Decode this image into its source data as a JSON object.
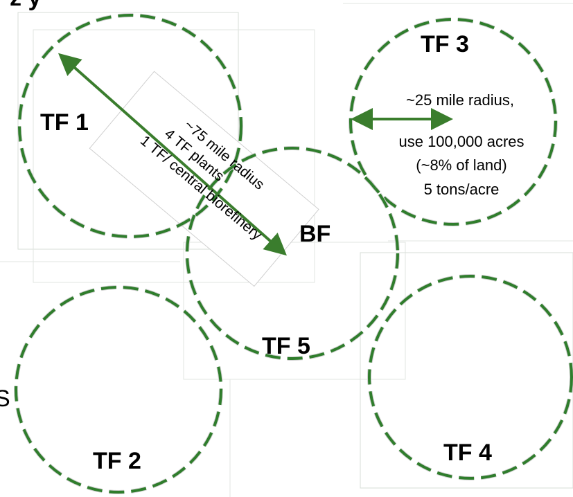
{
  "circles": [
    {
      "id": "tf1",
      "label": "TF 1"
    },
    {
      "id": "tf2",
      "label": "TF 2"
    },
    {
      "id": "tf3",
      "label": "TF 3"
    },
    {
      "id": "tf4",
      "label": "TF 4"
    },
    {
      "id": "tf5",
      "label": "TF 5"
    }
  ],
  "labels": {
    "bf": "BF",
    "top_cut": "z y",
    "left_cut": "S"
  },
  "notes": {
    "large": {
      "line1": "~75 mile radius",
      "line2": "4 TF plants",
      "line3": "1 TF/ central biorefinery"
    },
    "small": {
      "line1": "~25 mile radius,",
      "line2": "use 100,000 acres",
      "line3": "(~8% of land)",
      "line4": "5 tons/acre"
    }
  },
  "colors": {
    "circle": "#2f7d2c",
    "arrow": "#3a7d2d",
    "halo": "#cfcfcf"
  }
}
